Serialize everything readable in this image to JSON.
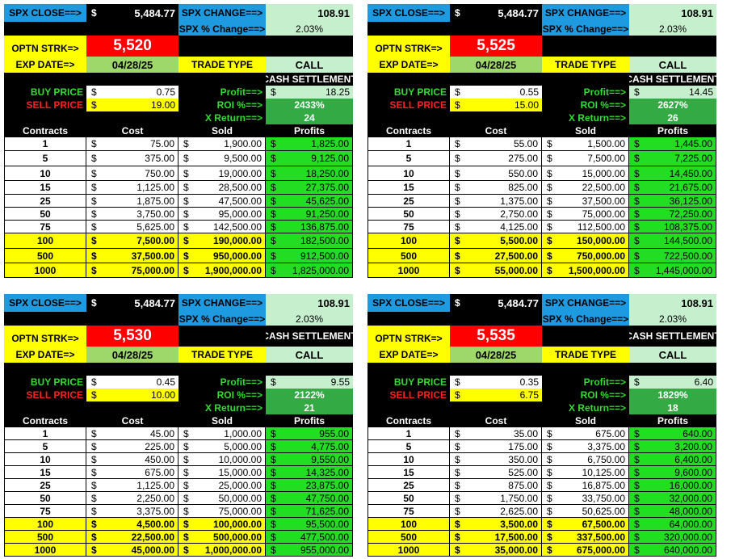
{
  "labels": {
    "spx_close": "SPX CLOSE==>",
    "spx_change": "SPX CHANGE==>",
    "spx_pct_change": "SPX % Change==>",
    "optn_strk": "OPTN STRK=>",
    "exp_date": "EXP DATE=>",
    "trade_type": "TRADE TYPE",
    "cash_settlement": "CASH SETTLEMENT",
    "buy_price": "BUY PRICE",
    "sell_price": "SELL PRICE",
    "profit": "Profit==>",
    "roi": "ROI %==>",
    "x_return": "X Return==>",
    "col_contracts": "Contracts",
    "col_cost": "Cost",
    "col_sold": "Sold",
    "col_profits": "Profits",
    "dollar": "$"
  },
  "colors": {
    "header_blue": "#1e9ae0",
    "light_green": "#c6efce",
    "strike_red": "#ff0000",
    "highlight_yellow": "#ffff00",
    "profit_green": "#22dd22",
    "roi_green": "#33aa44",
    "date_green": "#9fd86a"
  },
  "panels": [
    {
      "spx_close": "5,484.77",
      "spx_change": "108.91",
      "spx_pct_change": "2.03%",
      "strike": "5,520",
      "exp_date": "04/28/25",
      "trade_type": "CALL",
      "buy_price": "0.75",
      "sell_price": "19.00",
      "profit": "18.25",
      "roi": "2433%",
      "x_return": "24",
      "rows": [
        {
          "contracts": "1",
          "cost": "75.00",
          "sold": "1,900.00",
          "profit": "1,825.00"
        },
        {
          "contracts": "5",
          "cost": "375.00",
          "sold": "9,500.00",
          "profit": "9,125.00"
        },
        {
          "contracts": "10",
          "cost": "750.00",
          "sold": "19,000.00",
          "profit": "18,250.00"
        },
        {
          "contracts": "15",
          "cost": "1,125.00",
          "sold": "28,500.00",
          "profit": "27,375.00"
        },
        {
          "contracts": "25",
          "cost": "1,875.00",
          "sold": "47,500.00",
          "profit": "45,625.00"
        },
        {
          "contracts": "50",
          "cost": "3,750.00",
          "sold": "95,000.00",
          "profit": "91,250.00"
        },
        {
          "contracts": "75",
          "cost": "5,625.00",
          "sold": "142,500.00",
          "profit": "136,875.00"
        },
        {
          "contracts": "100",
          "cost": "7,500.00",
          "sold": "190,000.00",
          "profit": "182,500.00"
        },
        {
          "contracts": "500",
          "cost": "37,500.00",
          "sold": "950,000.00",
          "profit": "912,500.00"
        },
        {
          "contracts": "1000",
          "cost": "75,000.00",
          "sold": "1,900,000.00",
          "profit": "1,825,000.00"
        }
      ]
    },
    {
      "spx_close": "5,484.77",
      "spx_change": "108.91",
      "spx_pct_change": "2.03%",
      "strike": "5,525",
      "exp_date": "04/28/25",
      "trade_type": "CALL",
      "buy_price": "0.55",
      "sell_price": "15.00",
      "profit": "14.45",
      "roi": "2627%",
      "x_return": "26",
      "rows": [
        {
          "contracts": "1",
          "cost": "55.00",
          "sold": "1,500.00",
          "profit": "1,445.00"
        },
        {
          "contracts": "5",
          "cost": "275.00",
          "sold": "7,500.00",
          "profit": "7,225.00"
        },
        {
          "contracts": "10",
          "cost": "550.00",
          "sold": "15,000.00",
          "profit": "14,450.00"
        },
        {
          "contracts": "15",
          "cost": "825.00",
          "sold": "22,500.00",
          "profit": "21,675.00"
        },
        {
          "contracts": "25",
          "cost": "1,375.00",
          "sold": "37,500.00",
          "profit": "36,125.00"
        },
        {
          "contracts": "50",
          "cost": "2,750.00",
          "sold": "75,000.00",
          "profit": "72,250.00"
        },
        {
          "contracts": "75",
          "cost": "4,125.00",
          "sold": "112,500.00",
          "profit": "108,375.00"
        },
        {
          "contracts": "100",
          "cost": "5,500.00",
          "sold": "150,000.00",
          "profit": "144,500.00"
        },
        {
          "contracts": "500",
          "cost": "27,500.00",
          "sold": "750,000.00",
          "profit": "722,500.00"
        },
        {
          "contracts": "1000",
          "cost": "55,000.00",
          "sold": "1,500,000.00",
          "profit": "1,445,000.00"
        }
      ]
    },
    {
      "spx_close": "5,484.77",
      "spx_change": "108.91",
      "spx_pct_change": "2.03%",
      "strike": "5,530",
      "exp_date": "04/28/25",
      "trade_type": "CALL",
      "buy_price": "0.45",
      "sell_price": "10.00",
      "profit": "9.55",
      "roi": "2122%",
      "x_return": "21",
      "rows": [
        {
          "contracts": "1",
          "cost": "45.00",
          "sold": "1,000.00",
          "profit": "955.00"
        },
        {
          "contracts": "5",
          "cost": "225.00",
          "sold": "5,000.00",
          "profit": "4,775.00"
        },
        {
          "contracts": "10",
          "cost": "450.00",
          "sold": "10,000.00",
          "profit": "9,550.00"
        },
        {
          "contracts": "15",
          "cost": "675.00",
          "sold": "15,000.00",
          "profit": "14,325.00"
        },
        {
          "contracts": "25",
          "cost": "1,125.00",
          "sold": "25,000.00",
          "profit": "23,875.00"
        },
        {
          "contracts": "50",
          "cost": "2,250.00",
          "sold": "50,000.00",
          "profit": "47,750.00"
        },
        {
          "contracts": "75",
          "cost": "3,375.00",
          "sold": "75,000.00",
          "profit": "71,625.00"
        },
        {
          "contracts": "100",
          "cost": "4,500.00",
          "sold": "100,000.00",
          "profit": "95,500.00"
        },
        {
          "contracts": "500",
          "cost": "22,500.00",
          "sold": "500,000.00",
          "profit": "477,500.00"
        },
        {
          "contracts": "1000",
          "cost": "45,000.00",
          "sold": "1,000,000.00",
          "profit": "955,000.00"
        }
      ]
    },
    {
      "spx_close": "5,484.77",
      "spx_change": "108.91",
      "spx_pct_change": "2.03%",
      "strike": "5,535",
      "exp_date": "04/28/25",
      "trade_type": "CALL",
      "buy_price": "0.35",
      "sell_price": "6.75",
      "profit": "6.40",
      "roi": "1829%",
      "x_return": "18",
      "rows": [
        {
          "contracts": "1",
          "cost": "35.00",
          "sold": "675.00",
          "profit": "640.00"
        },
        {
          "contracts": "5",
          "cost": "175.00",
          "sold": "3,375.00",
          "profit": "3,200.00"
        },
        {
          "contracts": "10",
          "cost": "350.00",
          "sold": "6,750.00",
          "profit": "6,400.00"
        },
        {
          "contracts": "15",
          "cost": "525.00",
          "sold": "10,125.00",
          "profit": "9,600.00"
        },
        {
          "contracts": "25",
          "cost": "875.00",
          "sold": "16,875.00",
          "profit": "16,000.00"
        },
        {
          "contracts": "50",
          "cost": "1,750.00",
          "sold": "33,750.00",
          "profit": "32,000.00"
        },
        {
          "contracts": "75",
          "cost": "2,625.00",
          "sold": "50,625.00",
          "profit": "48,000.00"
        },
        {
          "contracts": "100",
          "cost": "3,500.00",
          "sold": "67,500.00",
          "profit": "64,000.00"
        },
        {
          "contracts": "500",
          "cost": "17,500.00",
          "sold": "337,500.00",
          "profit": "320,000.00"
        },
        {
          "contracts": "1000",
          "cost": "35,000.00",
          "sold": "675,000.00",
          "profit": "640,000.00"
        }
      ]
    }
  ]
}
